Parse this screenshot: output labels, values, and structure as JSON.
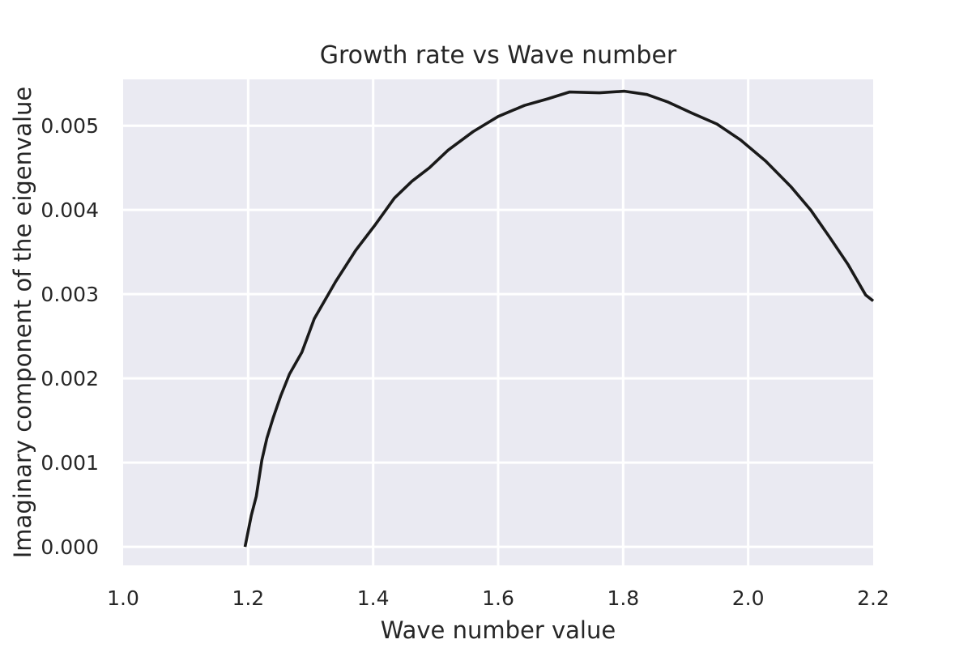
{
  "chart_data": {
    "type": "line",
    "title": "Growth rate vs Wave number",
    "xlabel": "Wave number value",
    "ylabel": "Imaginary component of the eigenvalue",
    "xlim": [
      1.0,
      2.2
    ],
    "ylim": [
      -0.00022,
      0.00555
    ],
    "xticks": [
      1.0,
      1.2,
      1.4,
      1.6,
      1.8,
      2.0,
      2.2
    ],
    "xtick_labels": [
      "1.0",
      "1.2",
      "1.4",
      "1.6",
      "1.8",
      "2.0",
      "2.2"
    ],
    "yticks": [
      0.0,
      0.001,
      0.002,
      0.003,
      0.004,
      0.005
    ],
    "ytick_labels": [
      "0.000",
      "0.001",
      "0.002",
      "0.003",
      "0.004",
      "0.005"
    ],
    "grid": true,
    "colors": {
      "plot_background": "#eaeaf2",
      "grid": "#ffffff",
      "line": "#1a1a1a",
      "text": "#262626"
    },
    "series": [
      {
        "x": [
          1.195,
          1.205,
          1.213,
          1.222,
          1.23,
          1.24,
          1.252,
          1.266,
          1.286,
          1.306,
          1.34,
          1.372,
          1.402,
          1.434,
          1.462,
          1.49,
          1.52,
          1.56,
          1.6,
          1.642,
          1.68,
          1.714,
          1.762,
          1.802,
          1.838,
          1.872,
          1.91,
          1.95,
          1.988,
          2.028,
          2.068,
          2.1,
          2.13,
          2.16,
          2.188,
          2.2
        ],
        "values": [
          0.0,
          0.00037,
          0.0006,
          0.00103,
          0.00129,
          0.00153,
          0.00179,
          0.00205,
          0.00231,
          0.00271,
          0.00315,
          0.00352,
          0.00381,
          0.00414,
          0.00434,
          0.0045,
          0.00471,
          0.00493,
          0.00511,
          0.00524,
          0.00532,
          0.0054,
          0.00539,
          0.00541,
          0.00537,
          0.00528,
          0.00515,
          0.00502,
          0.00483,
          0.00458,
          0.00428,
          0.004,
          0.00368,
          0.00335,
          0.00299,
          0.00292
        ]
      }
    ]
  }
}
